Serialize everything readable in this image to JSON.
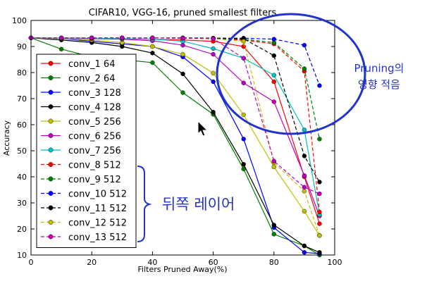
{
  "chart_data": {
    "type": "line",
    "title": "CIFAR10, VGG-16, pruned smallest filters",
    "xlabel": "Filters Pruned Away(%)",
    "ylabel": "Accuracy",
    "xlim": [
      0,
      100
    ],
    "ylim": [
      10,
      100
    ],
    "xticks": [
      0,
      20,
      40,
      60,
      80,
      100
    ],
    "yticks": [
      10,
      20,
      30,
      40,
      50,
      60,
      70,
      80,
      90,
      100
    ],
    "grid": false,
    "legend_position": "left",
    "series": [
      {
        "name": "conv_1 64",
        "color": "#ff0000",
        "dash": "solid",
        "x": [
          0,
          10,
          20,
          30,
          40,
          50,
          60,
          70,
          80,
          90,
          95
        ],
        "y": [
          93.3,
          93.2,
          93.1,
          93.0,
          92.8,
          92.5,
          92.0,
          90.0,
          76.5,
          40.0,
          22.0
        ]
      },
      {
        "name": "conv_2 64",
        "color": "#008000",
        "dash": "solid",
        "x": [
          0,
          10,
          20,
          30,
          40,
          50,
          60,
          70,
          80,
          90,
          95
        ],
        "y": [
          93.3,
          89.0,
          86.0,
          85.0,
          83.8,
          72.3,
          64.0,
          43.0,
          18.0,
          13.5,
          10.0
        ]
      },
      {
        "name": "conv_3 128",
        "color": "#0000ff",
        "dash": "solid",
        "x": [
          0,
          10,
          20,
          30,
          40,
          50,
          60,
          70,
          80,
          90,
          95
        ],
        "y": [
          93.3,
          93.0,
          92.0,
          91.0,
          90.0,
          86.0,
          76.5,
          54.5,
          20.5,
          11.0,
          10.5
        ]
      },
      {
        "name": "conv_4 128",
        "color": "#000000",
        "dash": "solid",
        "x": [
          0,
          10,
          20,
          30,
          40,
          50,
          60,
          70,
          80,
          90,
          95
        ],
        "y": [
          93.3,
          92.5,
          91.5,
          90.0,
          87.5,
          79.5,
          64.8,
          44.8,
          21.5,
          13.5,
          11.0
        ]
      },
      {
        "name": "conv_5 256",
        "color": "#bfbf00",
        "dash": "solid",
        "x": [
          0,
          10,
          20,
          30,
          40,
          50,
          60,
          70,
          80,
          90,
          95
        ],
        "y": [
          93.3,
          93.0,
          92.5,
          91.5,
          90.0,
          87.0,
          79.8,
          63.8,
          43.8,
          26.8,
          17.5
        ]
      },
      {
        "name": "conv_6 256",
        "color": "#bf00bf",
        "dash": "solid",
        "x": [
          0,
          10,
          20,
          30,
          40,
          50,
          60,
          70,
          80,
          90,
          95
        ],
        "y": [
          93.3,
          93.2,
          93.0,
          92.8,
          92.2,
          90.5,
          87.0,
          76.0,
          68.8,
          40.5,
          25.0
        ]
      },
      {
        "name": "conv_7 256",
        "color": "#00bfbf",
        "dash": "solid",
        "x": [
          0,
          10,
          20,
          30,
          40,
          50,
          60,
          70,
          80,
          90,
          95
        ],
        "y": [
          93.3,
          93.2,
          93.2,
          93.0,
          92.8,
          92.0,
          89.2,
          85.5,
          79.0,
          58.0,
          25.5
        ]
      },
      {
        "name": "conv_8 512",
        "color": "#ff0000",
        "dash": "dashed",
        "x": [
          0,
          10,
          20,
          30,
          40,
          50,
          60,
          70,
          80,
          90,
          95
        ],
        "y": [
          93.3,
          93.3,
          93.3,
          93.3,
          93.3,
          93.2,
          93.0,
          92.5,
          91.0,
          80.5,
          26.5
        ]
      },
      {
        "name": "conv_9 512",
        "color": "#008000",
        "dash": "dashed",
        "x": [
          0,
          10,
          20,
          30,
          40,
          50,
          60,
          70,
          80,
          90,
          95
        ],
        "y": [
          93.3,
          93.3,
          93.3,
          93.3,
          93.3,
          93.2,
          93.1,
          92.8,
          91.5,
          81.5,
          54.5
        ]
      },
      {
        "name": "conv_10 512",
        "color": "#0000ff",
        "dash": "dashed",
        "x": [
          0,
          10,
          20,
          30,
          40,
          50,
          60,
          70,
          80,
          90,
          95
        ],
        "y": [
          93.3,
          93.3,
          93.3,
          93.3,
          93.3,
          93.3,
          93.2,
          93.2,
          92.8,
          90.5,
          75.0
        ]
      },
      {
        "name": "conv_11 512",
        "color": "#000000",
        "dash": "dashed",
        "x": [
          0,
          10,
          20,
          30,
          40,
          50,
          60,
          70,
          80,
          90,
          95
        ],
        "y": [
          93.3,
          93.3,
          93.3,
          93.3,
          93.3,
          93.3,
          93.2,
          93.0,
          86.5,
          48.0,
          38.0
        ]
      },
      {
        "name": "conv_12 512",
        "color": "#bfbf00",
        "dash": "dashed",
        "x": [
          0,
          10,
          20,
          30,
          40,
          50,
          60,
          70,
          80,
          90,
          95
        ],
        "y": [
          93.3,
          93.3,
          93.3,
          93.3,
          93.3,
          93.2,
          93.0,
          92.0,
          45.5,
          34.5,
          17.5
        ]
      },
      {
        "name": "conv_13 512",
        "color": "#bf00bf",
        "dash": "dashed",
        "x": [
          0,
          10,
          20,
          30,
          40,
          50,
          60,
          70,
          80,
          90,
          95
        ],
        "y": [
          93.3,
          93.3,
          93.3,
          93.3,
          93.3,
          93.2,
          93.0,
          85.5,
          46.0,
          36.0,
          33.5
        ]
      }
    ],
    "annotations": [
      {
        "text": "Pruning의",
        "color": "#2233cc"
      },
      {
        "text": "영향 적음",
        "color": "#2233cc"
      },
      {
        "text": "뒤쪽 레이어",
        "color": "#2233cc"
      }
    ]
  }
}
